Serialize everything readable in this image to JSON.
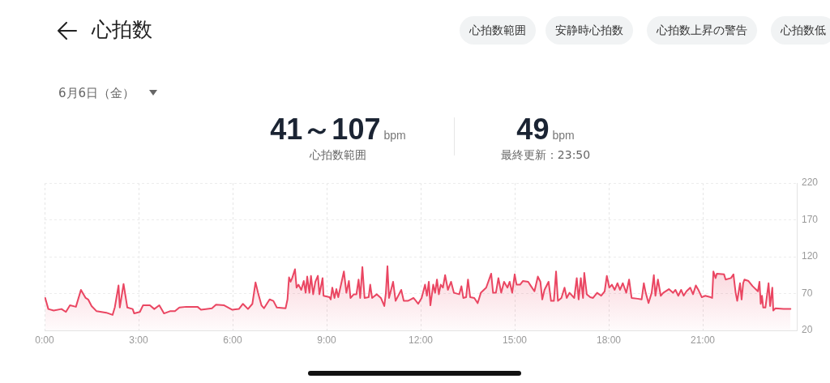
{
  "chart_data": {
    "type": "area",
    "title": "心拍数",
    "subtitle": "6月6日（金）",
    "annotations": [
      "心拍数範囲",
      "安静時心拍数",
      "心拍数上昇の警告",
      "心拍数低",
      "41～107",
      "bpm",
      "心拍数範囲",
      "49",
      "bpm",
      "最終更新：23:50"
    ],
    "x": [
      0.02,
      0.12,
      0.29,
      0.54,
      0.68,
      0.81,
      1.0,
      1.16,
      1.31,
      1.39,
      1.5,
      1.66,
      1.97,
      2.17,
      2.24,
      2.36,
      2.4,
      2.52,
      2.64,
      2.81,
      2.86,
      3.04,
      3.14,
      3.36,
      3.5,
      3.66,
      3.81,
      4.0,
      4.16,
      4.3,
      4.52,
      4.88,
      4.99,
      5.34,
      5.47,
      5.73,
      5.99,
      6.2,
      6.33,
      6.49,
      6.63,
      6.73,
      6.81,
      6.92,
      7.0,
      7.18,
      7.3,
      7.41,
      7.69,
      7.75,
      7.8,
      7.85,
      7.9,
      7.99,
      8.04,
      8.1,
      8.19,
      8.27,
      8.33,
      8.38,
      8.45,
      8.5,
      8.57,
      8.64,
      8.72,
      8.77,
      8.87,
      8.9,
      9.09,
      9.13,
      9.18,
      9.25,
      9.31,
      9.37,
      9.55,
      9.63,
      9.71,
      9.76,
      9.87,
      9.95,
      10.02,
      10.07,
      10.14,
      10.21,
      10.34,
      10.39,
      10.45,
      10.6,
      10.73,
      10.84,
      10.89,
      10.94,
      10.99,
      11.12,
      11.2,
      11.38,
      11.46,
      11.59,
      11.68,
      11.77,
      11.85,
      11.92,
      12.03,
      12.14,
      12.2,
      12.26,
      12.31,
      12.4,
      12.46,
      12.52,
      12.58,
      12.64,
      12.71,
      12.78,
      12.87,
      12.97,
      13.06,
      13.23,
      13.3,
      13.36,
      13.45,
      13.51,
      13.58,
      13.71,
      13.82,
      13.92,
      14.09,
      14.25,
      14.31,
      14.4,
      14.48,
      14.57,
      14.66,
      14.77,
      14.84,
      14.92,
      15.0,
      15.06,
      15.17,
      15.26,
      15.43,
      15.52,
      15.63,
      15.74,
      15.82,
      15.88,
      15.95,
      16.08,
      16.16,
      16.25,
      16.32,
      16.38,
      16.49,
      16.59,
      16.66,
      16.75,
      16.9,
      16.98,
      17.04,
      17.11,
      17.18,
      17.22,
      17.3,
      17.41,
      17.5,
      17.63,
      17.76,
      17.87,
      17.94,
      18.02,
      18.1,
      18.19,
      18.28,
      18.36,
      18.45,
      18.56,
      18.65,
      18.73,
      18.92,
      19.05,
      19.12,
      19.18,
      19.27,
      19.37,
      19.44,
      19.49,
      19.57,
      19.66,
      19.74,
      19.92,
      20.05,
      20.13,
      20.22,
      20.31,
      20.39,
      20.48,
      20.6,
      20.69,
      20.78,
      20.86,
      20.97,
      21.08,
      21.25,
      21.3,
      21.34,
      21.41,
      21.45,
      21.68,
      21.73,
      21.9,
      21.98,
      22.05,
      22.1,
      22.19,
      22.24,
      22.29,
      22.33,
      22.46,
      22.59,
      22.76,
      22.81,
      22.85,
      22.89,
      22.93,
      23.0,
      23.1,
      23.15,
      23.22,
      23.25,
      23.32,
      23.58,
      23.8
    ],
    "series": [
      {
        "color": "#ea4662",
        "values": [
          64,
          49,
          47,
          49,
          45,
          54,
          52,
          75,
          64,
          62,
          53,
          46,
          44,
          41,
          51,
          81,
          51,
          83,
          51,
          49,
          43,
          45,
          54,
          54,
          49,
          54,
          43,
          46,
          46,
          51,
          52,
          52,
          48,
          50,
          55,
          54,
          48,
          49,
          56,
          49,
          56,
          85,
          71,
          54,
          50,
          62,
          60,
          51,
          50,
          62,
          92,
          86,
          91,
          103,
          78,
          82,
          75,
          87,
          71,
          93,
          71,
          94,
          69,
          86,
          94,
          69,
          91,
          67,
          65,
          62,
          78,
          64,
          76,
          65,
          100,
          71,
          87,
          64,
          69,
          69,
          89,
          64,
          106,
          64,
          65,
          82,
          64,
          69,
          64,
          53,
          71,
          107,
          64,
          86,
          60,
          75,
          60,
          60,
          62,
          64,
          60,
          56,
          64,
          82,
          67,
          86,
          54,
          82,
          71,
          89,
          69,
          82,
          78,
          95,
          75,
          86,
          71,
          69,
          80,
          64,
          65,
          89,
          65,
          64,
          57,
          71,
          78,
          97,
          71,
          71,
          91,
          71,
          86,
          78,
          86,
          71,
          96,
          82,
          82,
          87,
          86,
          80,
          73,
          93,
          86,
          62,
          75,
          86,
          60,
          60,
          100,
          60,
          64,
          78,
          64,
          71,
          64,
          91,
          62,
          91,
          64,
          98,
          69,
          65,
          64,
          71,
          67,
          73,
          94,
          78,
          82,
          75,
          84,
          75,
          84,
          71,
          89,
          64,
          63,
          62,
          84,
          71,
          57,
          71,
          95,
          67,
          89,
          67,
          71,
          76,
          71,
          75,
          67,
          75,
          67,
          73,
          78,
          69,
          81,
          75,
          65,
          67,
          65,
          64,
          100,
          91,
          97,
          96,
          89,
          91,
          96,
          71,
          60,
          84,
          62,
          84,
          89,
          87,
          80,
          73,
          86,
          56,
          67,
          51,
          51,
          84,
          53,
          78,
          47,
          50,
          49,
          49
        ]
      }
    ],
    "xlim": [
      0,
      24
    ],
    "xticks": [
      {
        "value": 0,
        "label": "0:00"
      },
      {
        "value": 3,
        "label": "3:00"
      },
      {
        "value": 6,
        "label": "6:00"
      },
      {
        "value": 9,
        "label": "9:00"
      },
      {
        "value": 12,
        "label": "12:00"
      },
      {
        "value": 15,
        "label": "15:00"
      },
      {
        "value": 18,
        "label": "18:00"
      },
      {
        "value": 21,
        "label": "21:00"
      }
    ],
    "ylim": [
      20,
      220
    ],
    "yticks": [
      20,
      70,
      120,
      170,
      220
    ],
    "grid": true
  }
}
